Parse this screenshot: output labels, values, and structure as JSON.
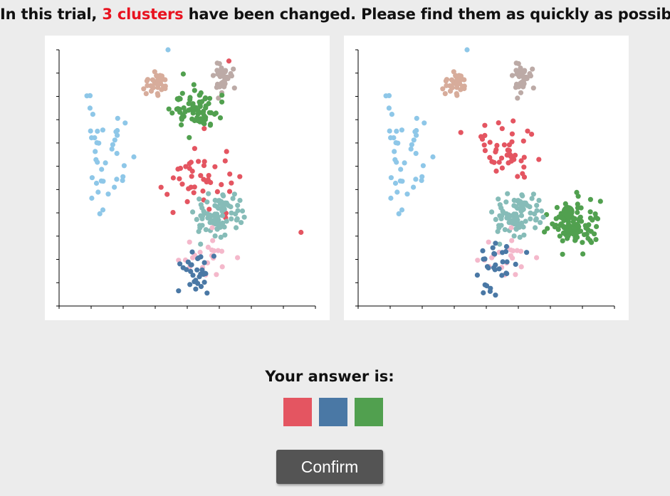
{
  "instruction": {
    "prefix": "In this trial, ",
    "highlight": "3 clusters",
    "suffix": " have been changed. Please find them as quickly as possible."
  },
  "answer": {
    "label": "Your answer is:",
    "selected": [
      {
        "color_name": "red",
        "hex": "#e45561"
      },
      {
        "color_name": "blue",
        "hex": "#4a78a5"
      },
      {
        "color_name": "green",
        "hex": "#51a04f"
      }
    ]
  },
  "confirm_label": "Confirm",
  "colors": {
    "lightblue": "#8ec7e8",
    "peach": "#d7ac9b",
    "gray": "#bcaaa6",
    "green": "#51a04f",
    "red": "#e45561",
    "teal": "#86bcb8",
    "pink": "#f4b8cb",
    "blue": "#4a78a5",
    "highlight_text": "#e8121f"
  },
  "chart_data": [
    {
      "type": "scatter",
      "panel": "left",
      "xlim": [
        0,
        800
      ],
      "ylim": [
        0,
        800
      ],
      "x_tick_count": 9,
      "y_tick_count": 12,
      "grid": false,
      "series": [
        {
          "color": "lightblue",
          "cluster": {
            "cx": 150,
            "cy": 470,
            "sx": 75,
            "sy": 150,
            "n": 40,
            "seed": 11
          },
          "extra": [
            [
              340,
              800
            ]
          ]
        },
        {
          "color": "peach",
          "cluster": {
            "cx": 300,
            "cy": 695,
            "sx": 30,
            "sy": 28,
            "n": 35,
            "seed": 12
          }
        },
        {
          "color": "gray",
          "cluster": {
            "cx": 505,
            "cy": 710,
            "sx": 30,
            "sy": 40,
            "n": 35,
            "seed": 13
          }
        },
        {
          "color": "green",
          "cluster": {
            "cx": 430,
            "cy": 615,
            "sx": 65,
            "sy": 60,
            "n": 75,
            "seed": 14
          }
        },
        {
          "color": "red",
          "cluster": {
            "cx": 440,
            "cy": 390,
            "sx": 110,
            "sy": 140,
            "n": 45,
            "seed": 15
          },
          "extra": [
            [
              755,
              230
            ],
            [
              530,
              765
            ]
          ]
        },
        {
          "color": "teal",
          "cluster": {
            "cx": 500,
            "cy": 285,
            "sx": 70,
            "sy": 65,
            "n": 90,
            "seed": 16
          }
        },
        {
          "color": "pink",
          "cluster": {
            "cx": 450,
            "cy": 160,
            "sx": 90,
            "sy": 75,
            "n": 22,
            "seed": 17
          }
        },
        {
          "color": "blue",
          "cluster": {
            "cx": 430,
            "cy": 100,
            "sx": 55,
            "sy": 70,
            "n": 30,
            "seed": 18
          }
        }
      ]
    },
    {
      "type": "scatter",
      "panel": "right",
      "xlim": [
        0,
        800
      ],
      "ylim": [
        0,
        800
      ],
      "x_tick_count": 9,
      "y_tick_count": 12,
      "grid": false,
      "series": [
        {
          "color": "lightblue",
          "cluster": {
            "cx": 150,
            "cy": 470,
            "sx": 75,
            "sy": 150,
            "n": 40,
            "seed": 11
          },
          "extra": [
            [
              340,
              800
            ]
          ]
        },
        {
          "color": "peach",
          "cluster": {
            "cx": 300,
            "cy": 695,
            "sx": 30,
            "sy": 28,
            "n": 35,
            "seed": 12
          }
        },
        {
          "color": "gray",
          "cluster": {
            "cx": 505,
            "cy": 710,
            "sx": 30,
            "sy": 40,
            "n": 35,
            "seed": 13
          }
        },
        {
          "color": "green",
          "cluster": {
            "cx": 665,
            "cy": 250,
            "sx": 75,
            "sy": 60,
            "n": 100,
            "seed": 24
          },
          "extra_big": [
            [
              655,
              295
            ]
          ]
        },
        {
          "color": "red",
          "cluster": {
            "cx": 450,
            "cy": 475,
            "sx": 90,
            "sy": 90,
            "n": 45,
            "seed": 25
          }
        },
        {
          "color": "teal",
          "cluster": {
            "cx": 500,
            "cy": 285,
            "sx": 70,
            "sy": 65,
            "n": 90,
            "seed": 16
          }
        },
        {
          "color": "pink",
          "cluster": {
            "cx": 450,
            "cy": 160,
            "sx": 90,
            "sy": 75,
            "n": 22,
            "seed": 17
          }
        },
        {
          "color": "blue",
          "cluster": {
            "cx": 440,
            "cy": 120,
            "sx": 85,
            "sy": 70,
            "n": 30,
            "seed": 28
          }
        }
      ]
    }
  ]
}
